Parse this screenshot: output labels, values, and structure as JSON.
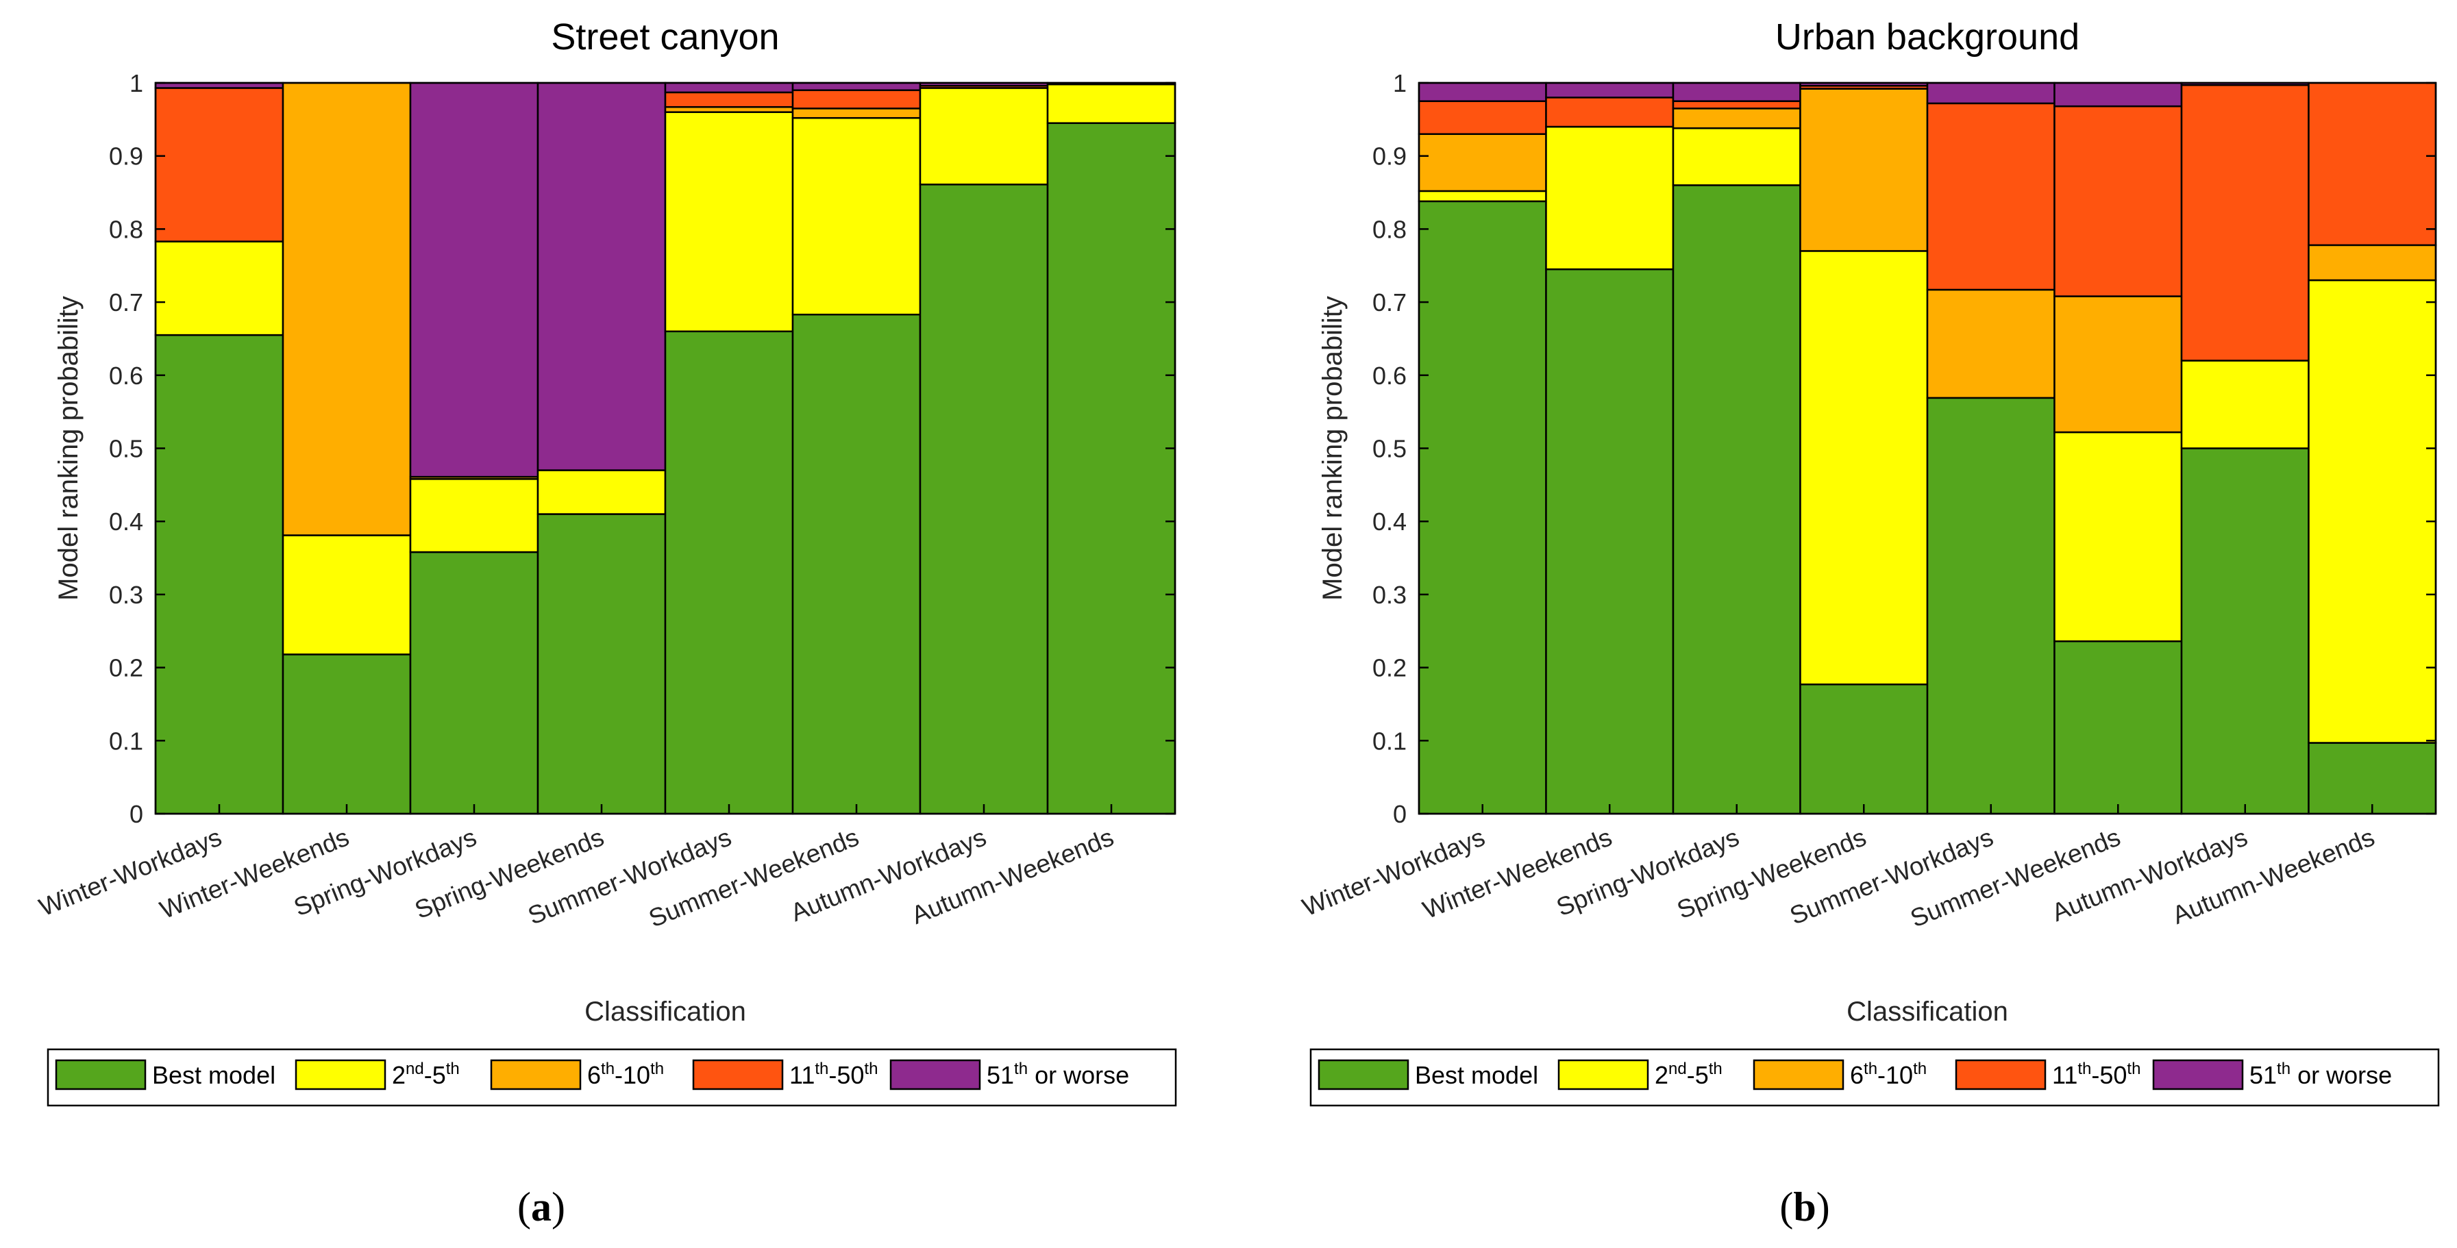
{
  "chart_data": [
    {
      "type": "bar",
      "stacked": true,
      "title": "Street canyon",
      "xlabel": "Classification",
      "ylabel": "Model ranking probability",
      "ylim": [
        0,
        1
      ],
      "yticks": [
        "0",
        "0.1",
        "0.2",
        "0.3",
        "0.4",
        "0.5",
        "0.6",
        "0.7",
        "0.8",
        "0.9",
        "1"
      ],
      "categories": [
        "Winter-Workdays",
        "Winter-Weekends",
        "Spring-Workdays",
        "Spring-Weekends",
        "Summer-Workdays",
        "Summer-Weekends",
        "Autumn-Workdays",
        "Autumn-Weekends"
      ],
      "series": [
        {
          "name": "Best model",
          "values": [
            0.655,
            0.218,
            0.358,
            0.41,
            0.66,
            0.683,
            0.861,
            0.945
          ]
        },
        {
          "name": "2nd-5th",
          "values": [
            0.128,
            0.163,
            0.1,
            0.06,
            0.3,
            0.269,
            0.132,
            0.053
          ]
        },
        {
          "name": "6th-10th",
          "values": [
            0.0,
            0.619,
            0.003,
            0.0,
            0.007,
            0.013,
            0.0,
            0.0
          ]
        },
        {
          "name": "11th-50th",
          "values": [
            0.21,
            0.0,
            0.0,
            0.0,
            0.02,
            0.025,
            0.003,
            0.0
          ]
        },
        {
          "name": "51th or worse",
          "values": [
            0.007,
            0.0,
            0.539,
            0.53,
            0.013,
            0.01,
            0.004,
            0.002
          ]
        }
      ],
      "panel_label": "(a)"
    },
    {
      "type": "bar",
      "stacked": true,
      "title": "Urban background",
      "xlabel": "Classification",
      "ylabel": "Model ranking probability",
      "ylim": [
        0,
        1
      ],
      "yticks": [
        "0",
        "0.1",
        "0.2",
        "0.3",
        "0.4",
        "0.5",
        "0.6",
        "0.7",
        "0.8",
        "0.9",
        "1"
      ],
      "categories": [
        "Winter-Workdays",
        "Winter-Weekends",
        "Spring-Workdays",
        "Spring-Weekends",
        "Summer-Workdays",
        "Summer-Weekends",
        "Autumn-Workdays",
        "Autumn-Weekends"
      ],
      "series": [
        {
          "name": "Best model",
          "values": [
            0.838,
            0.745,
            0.86,
            0.177,
            0.569,
            0.236,
            0.5,
            0.097
          ]
        },
        {
          "name": "2nd-5th",
          "values": [
            0.014,
            0.195,
            0.078,
            0.593,
            0.0,
            0.286,
            0.12,
            0.633
          ]
        },
        {
          "name": "6th-10th",
          "values": [
            0.078,
            0.0,
            0.027,
            0.222,
            0.148,
            0.186,
            0.0,
            0.048
          ]
        },
        {
          "name": "11th-50th",
          "values": [
            0.045,
            0.04,
            0.01,
            0.004,
            0.255,
            0.26,
            0.377,
            0.222
          ]
        },
        {
          "name": "51th or worse",
          "values": [
            0.025,
            0.02,
            0.025,
            0.004,
            0.028,
            0.032,
            0.003,
            0.0
          ]
        }
      ],
      "panel_label": "(b)"
    }
  ],
  "legend": {
    "placement": "bottom",
    "items": [
      {
        "color": "#55a61d",
        "label": "Best model",
        "sup": [],
        "parts": [
          "Best model"
        ]
      },
      {
        "color": "#ffff00",
        "label": "2nd-5th",
        "parts": [
          "2",
          "nd",
          "-5",
          "th"
        ]
      },
      {
        "color": "#ffae00",
        "label": "6th-10th",
        "parts": [
          "6",
          "th",
          "-10",
          "th"
        ]
      },
      {
        "color": "#ff5410",
        "label": "11th-50th",
        "parts": [
          "11",
          "th",
          "-50",
          "th"
        ]
      },
      {
        "color": "#8e2a8e",
        "label": "51th or worse",
        "parts": [
          "51",
          "th",
          " or worse"
        ]
      }
    ]
  },
  "colors": {
    "best": "#55a61d",
    "second_fifth": "#ffff00",
    "sixth_tenth": "#ffae00",
    "eleventh_fiftieth": "#ff5410",
    "fiftyfirst_worse": "#8e2a8e"
  }
}
